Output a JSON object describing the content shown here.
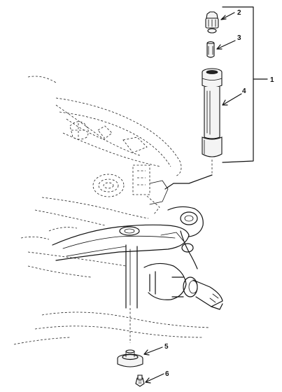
{
  "diagram": {
    "callouts": [
      {
        "id": "c1",
        "label": "1"
      },
      {
        "id": "c2",
        "label": "2"
      },
      {
        "id": "c3",
        "label": "3"
      },
      {
        "id": "c4",
        "label": "4"
      },
      {
        "id": "c5",
        "label": "5"
      },
      {
        "id": "c6",
        "label": "6"
      }
    ],
    "colors": {
      "ink": "#111111",
      "background": "#ffffff"
    }
  }
}
